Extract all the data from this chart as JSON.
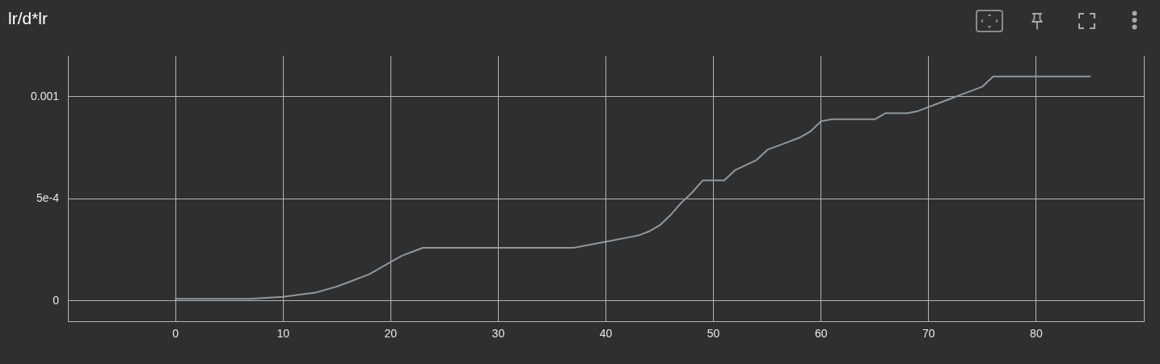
{
  "chart_data": {
    "type": "line",
    "title": "lr/d*lr",
    "x": [
      0,
      7,
      10,
      13,
      15,
      16,
      18,
      20,
      21,
      22,
      23,
      37,
      39,
      40,
      42,
      43,
      44,
      45,
      46,
      47,
      48,
      49,
      51,
      52,
      54,
      55,
      57,
      58,
      59,
      60,
      61,
      62,
      65,
      66,
      68,
      69,
      70,
      71,
      72,
      73,
      74,
      75,
      76,
      85
    ],
    "series": [
      {
        "color": "#8e98a2",
        "values": [
          1e-05,
          1e-05,
          2e-05,
          4e-05,
          7e-05,
          9e-05,
          0.00013,
          0.00019,
          0.00022,
          0.00024,
          0.00026,
          0.00026,
          0.00028,
          0.00029,
          0.00031,
          0.00032,
          0.00034,
          0.00037,
          0.00042,
          0.00048,
          0.00053,
          0.00059,
          0.00059,
          0.00064,
          0.00069,
          0.00074,
          0.00078,
          0.0008,
          0.00083,
          0.00088,
          0.00089,
          0.00089,
          0.00089,
          0.00092,
          0.00092,
          0.00093,
          0.00095,
          0.00097,
          0.00099,
          0.00101,
          0.00103,
          0.00105,
          0.0011,
          0.0011
        ]
      }
    ],
    "xlim": [
      -10,
      90
    ],
    "xticks": [
      {
        "value": -10,
        "label": null
      },
      0,
      10,
      20,
      30,
      40,
      50,
      60,
      70,
      80,
      {
        "value": 90,
        "label": null
      }
    ],
    "ylim": [
      -0.0001,
      0.0012
    ],
    "yticks": [
      0,
      {
        "value": 0.0005,
        "label": "5e-4"
      },
      0.001
    ],
    "grid": true,
    "marker": "none",
    "line_style": "solid"
  }
}
